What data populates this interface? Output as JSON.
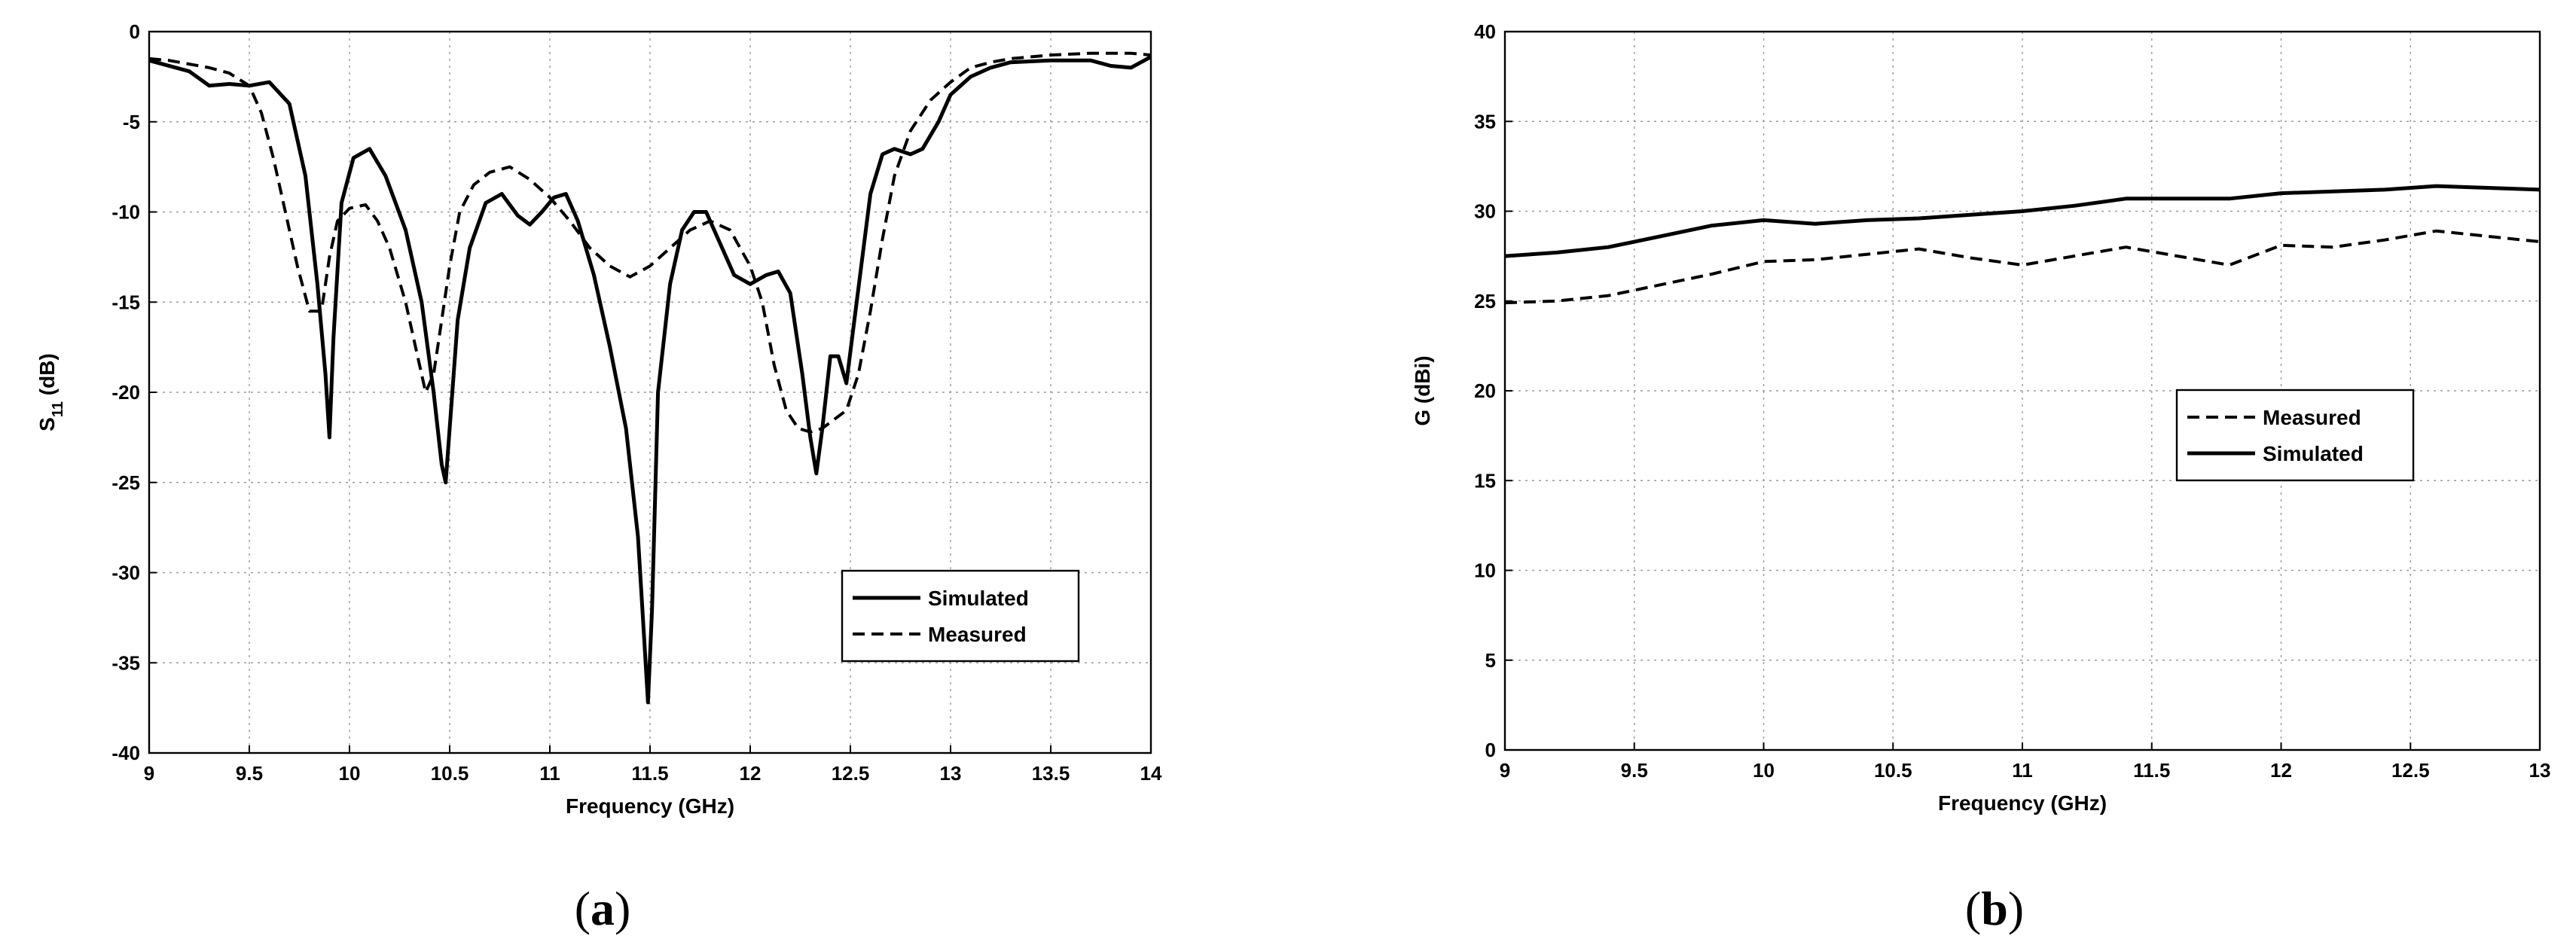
{
  "chart_data": [
    {
      "type": "line",
      "caption": "(a)",
      "xlabel": "Frequency (GHz)",
      "ylabel_main": "S",
      "ylabel_sub": "11",
      "ylabel_unit": " (dB)",
      "xlim": [
        9,
        14
      ],
      "ylim": [
        -40,
        0
      ],
      "xticks": [
        "9",
        "9.5",
        "10",
        "10.5",
        "11",
        "11.5",
        "12",
        "12.5",
        "13",
        "13.5",
        "14"
      ],
      "yticks": [
        "0",
        "-5",
        "-10",
        "-15",
        "-20",
        "-25",
        "-30",
        "-35",
        "-40"
      ],
      "grid": true,
      "legend_position": "lower-right",
      "series": [
        {
          "name": "Simulated",
          "style": "solid",
          "x": [
            9.0,
            9.2,
            9.3,
            9.4,
            9.5,
            9.6,
            9.7,
            9.78,
            9.84,
            9.88,
            9.9,
            9.92,
            9.96,
            10.02,
            10.1,
            10.18,
            10.28,
            10.36,
            10.42,
            10.46,
            10.48,
            10.5,
            10.54,
            10.6,
            10.68,
            10.76,
            10.84,
            10.9,
            10.96,
            11.02,
            11.08,
            11.14,
            11.22,
            11.3,
            11.38,
            11.44,
            11.47,
            11.49,
            11.51,
            11.54,
            11.6,
            11.66,
            11.72,
            11.78,
            11.84,
            11.92,
            12.0,
            12.08,
            12.14,
            12.2,
            12.26,
            12.3,
            12.33,
            12.36,
            12.4,
            12.44,
            12.48,
            12.52,
            12.6,
            12.66,
            12.72,
            12.8,
            12.86,
            12.94,
            13.0,
            13.1,
            13.2,
            13.3,
            13.5,
            13.7,
            13.8,
            13.9,
            14.0
          ],
          "y": [
            -1.6,
            -2.2,
            -3.0,
            -2.9,
            -3.0,
            -2.8,
            -4.0,
            -8.0,
            -14.0,
            -19.0,
            -22.5,
            -17.0,
            -9.5,
            -7.0,
            -6.5,
            -8.0,
            -11.0,
            -15.0,
            -20.0,
            -24.0,
            -25.0,
            -22.0,
            -16.0,
            -12.0,
            -9.5,
            -9.0,
            -10.2,
            -10.7,
            -10.0,
            -9.2,
            -9.0,
            -10.5,
            -13.5,
            -17.5,
            -22.0,
            -28.0,
            -33.5,
            -37.2,
            -32.0,
            -20.0,
            -14.0,
            -11.0,
            -10.0,
            -10.0,
            -11.5,
            -13.5,
            -14.0,
            -13.5,
            -13.3,
            -14.5,
            -19.0,
            -22.5,
            -24.5,
            -22.0,
            -18.0,
            -18.0,
            -19.5,
            -16.0,
            -9.0,
            -6.8,
            -6.5,
            -6.8,
            -6.5,
            -5.0,
            -3.5,
            -2.5,
            -2.0,
            -1.7,
            -1.6,
            -1.6,
            -1.9,
            -2.0,
            -1.4
          ]
        },
        {
          "name": "Measured",
          "style": "dashed",
          "x": [
            9.0,
            9.1,
            9.2,
            9.3,
            9.4,
            9.5,
            9.56,
            9.62,
            9.68,
            9.74,
            9.8,
            9.86,
            9.9,
            9.94,
            10.0,
            10.08,
            10.14,
            10.2,
            10.28,
            10.34,
            10.38,
            10.42,
            10.46,
            10.5,
            10.55,
            10.62,
            10.7,
            10.8,
            10.9,
            11.0,
            11.1,
            11.2,
            11.3,
            11.4,
            11.5,
            11.6,
            11.7,
            11.8,
            11.9,
            12.0,
            12.06,
            12.12,
            12.18,
            12.24,
            12.3,
            12.36,
            12.42,
            12.48,
            12.54,
            12.6,
            12.66,
            12.72,
            12.8,
            12.9,
            13.0,
            13.1,
            13.2,
            13.3,
            13.5,
            13.7,
            13.9,
            14.0
          ],
          "y": [
            -1.5,
            -1.6,
            -1.8,
            -2.0,
            -2.3,
            -3.0,
            -4.5,
            -7.0,
            -10.0,
            -13.0,
            -15.5,
            -15.5,
            -12.5,
            -10.5,
            -9.8,
            -9.6,
            -10.5,
            -12.0,
            -15.0,
            -18.0,
            -20.0,
            -19.0,
            -16.0,
            -13.0,
            -10.0,
            -8.5,
            -7.8,
            -7.5,
            -8.2,
            -9.2,
            -10.5,
            -12.0,
            -13.0,
            -13.6,
            -13.0,
            -12.0,
            -11.0,
            -10.5,
            -11.0,
            -13.0,
            -15.0,
            -18.5,
            -21.0,
            -22.0,
            -22.2,
            -22.0,
            -21.5,
            -21.0,
            -19.0,
            -15.5,
            -11.5,
            -8.0,
            -5.5,
            -3.8,
            -2.8,
            -2.0,
            -1.7,
            -1.5,
            -1.3,
            -1.2,
            -1.2,
            -1.3
          ]
        }
      ]
    },
    {
      "type": "line",
      "caption": "(b)",
      "xlabel": "Frequency (GHz)",
      "ylabel_main": "G (dBi)",
      "ylabel_sub": "",
      "ylabel_unit": "",
      "xlim": [
        9,
        13
      ],
      "ylim": [
        0,
        40
      ],
      "xticks": [
        "9",
        "9.5",
        "10",
        "10.5",
        "11",
        "11.5",
        "12",
        "12.5",
        "13"
      ],
      "yticks": [
        "0",
        "5",
        "10",
        "15",
        "20",
        "25",
        "30",
        "35",
        "40"
      ],
      "grid": true,
      "legend_position": "center-right",
      "series": [
        {
          "name": "Measured",
          "style": "dashed",
          "x": [
            9.0,
            9.2,
            9.4,
            9.6,
            9.8,
            10.0,
            10.2,
            10.4,
            10.6,
            10.8,
            11.0,
            11.2,
            11.4,
            11.6,
            11.8,
            12.0,
            12.2,
            12.4,
            12.6,
            12.8,
            13.0
          ],
          "y": [
            24.9,
            25.0,
            25.3,
            25.9,
            26.5,
            27.2,
            27.3,
            27.6,
            27.9,
            27.4,
            27.0,
            27.5,
            28.0,
            27.5,
            27.0,
            28.1,
            28.0,
            28.4,
            28.9,
            28.6,
            28.3
          ]
        },
        {
          "name": "Simulated",
          "style": "solid",
          "x": [
            9.0,
            9.2,
            9.4,
            9.6,
            9.8,
            10.0,
            10.2,
            10.4,
            10.6,
            10.8,
            11.0,
            11.2,
            11.4,
            11.6,
            11.8,
            12.0,
            12.2,
            12.4,
            12.6,
            12.8,
            13.0
          ],
          "y": [
            27.5,
            27.7,
            28.0,
            28.6,
            29.2,
            29.5,
            29.3,
            29.5,
            29.6,
            29.8,
            30.0,
            30.3,
            30.7,
            30.7,
            30.7,
            31.0,
            31.1,
            31.2,
            31.4,
            31.3,
            31.2
          ]
        }
      ]
    }
  ]
}
